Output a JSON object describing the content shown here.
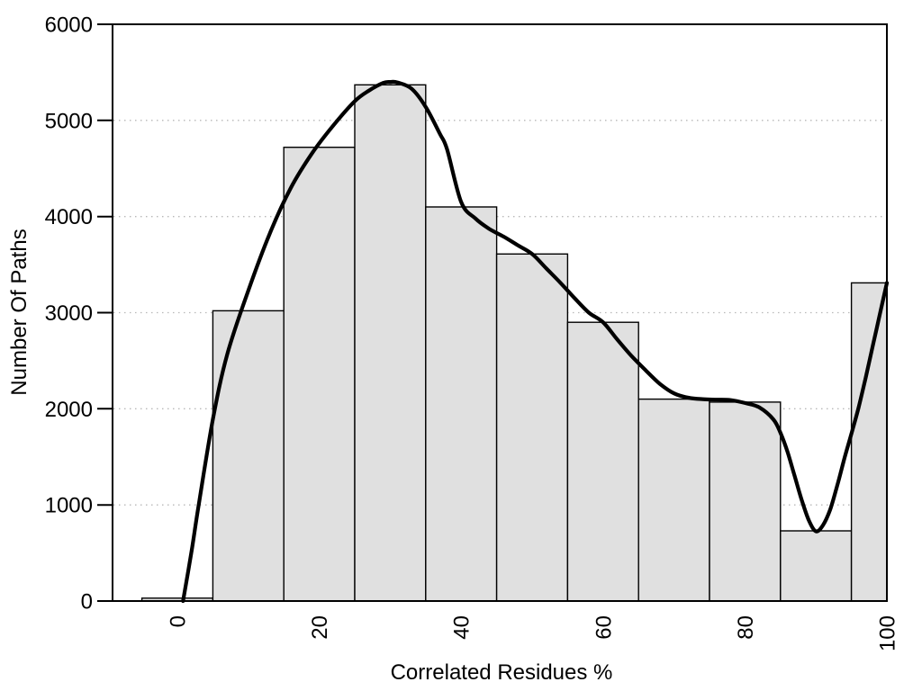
{
  "chart_data": {
    "type": "bar",
    "subtype": "histogram-with-density-curve",
    "title": "",
    "xlabel": "Correlated Residues %",
    "ylabel": "Number Of Paths",
    "xlim": [
      -9.14,
      100
    ],
    "ylim": [
      0,
      6000
    ],
    "x_ticks": [
      0,
      20,
      40,
      60,
      80,
      100
    ],
    "y_ticks": [
      0,
      1000,
      2000,
      3000,
      4000,
      5000,
      6000
    ],
    "gridlines_y": [
      1000,
      2000,
      3000,
      4000,
      5000
    ],
    "grid_on": true,
    "legend": null,
    "bars": [
      {
        "x0": -5,
        "x1": 5,
        "value": 30
      },
      {
        "x0": 5,
        "x1": 15,
        "value": 3020
      },
      {
        "x0": 15,
        "x1": 25,
        "value": 4720
      },
      {
        "x0": 25,
        "x1": 35,
        "value": 5370
      },
      {
        "x0": 35,
        "x1": 45,
        "value": 4100
      },
      {
        "x0": 45,
        "x1": 55,
        "value": 3610
      },
      {
        "x0": 55,
        "x1": 65,
        "value": 2900
      },
      {
        "x0": 65,
        "x1": 75,
        "value": 2100
      },
      {
        "x0": 75,
        "x1": 85,
        "value": 2070
      },
      {
        "x0": 85,
        "x1": 95,
        "value": 730
      },
      {
        "x0": 95,
        "x1": 100,
        "value": 3310
      }
    ],
    "curve": [
      [
        0.8,
        0
      ],
      [
        2,
        520
      ],
      [
        3,
        1000
      ],
      [
        5,
        1890
      ],
      [
        7,
        2560
      ],
      [
        10,
        3230
      ],
      [
        13,
        3820
      ],
      [
        16,
        4300
      ],
      [
        19,
        4660
      ],
      [
        22,
        4950
      ],
      [
        25,
        5200
      ],
      [
        27,
        5310
      ],
      [
        29,
        5390
      ],
      [
        30,
        5400
      ],
      [
        31,
        5395
      ],
      [
        33,
        5330
      ],
      [
        35,
        5140
      ],
      [
        37,
        4860
      ],
      [
        38,
        4700
      ],
      [
        40,
        4150
      ],
      [
        42,
        3980
      ],
      [
        44,
        3870
      ],
      [
        46,
        3790
      ],
      [
        48,
        3700
      ],
      [
        50,
        3610
      ],
      [
        52,
        3460
      ],
      [
        54,
        3310
      ],
      [
        56,
        3150
      ],
      [
        58,
        3000
      ],
      [
        60,
        2900
      ],
      [
        62,
        2720
      ],
      [
        64,
        2550
      ],
      [
        66,
        2400
      ],
      [
        68,
        2260
      ],
      [
        70,
        2160
      ],
      [
        72,
        2115
      ],
      [
        74,
        2100
      ],
      [
        76,
        2095
      ],
      [
        78,
        2090
      ],
      [
        80,
        2060
      ],
      [
        82,
        2015
      ],
      [
        84,
        1890
      ],
      [
        85,
        1750
      ],
      [
        86,
        1550
      ],
      [
        87,
        1300
      ],
      [
        88,
        1050
      ],
      [
        89,
        840
      ],
      [
        90,
        725
      ],
      [
        91,
        790
      ],
      [
        92,
        950
      ],
      [
        93,
        1200
      ],
      [
        94,
        1480
      ],
      [
        95,
        1740
      ],
      [
        96,
        2010
      ],
      [
        97,
        2320
      ],
      [
        98,
        2650
      ],
      [
        99,
        2980
      ],
      [
        100,
        3310
      ]
    ],
    "colors": {
      "bar_fill": "#e0e0e0",
      "bar_stroke": "#000000",
      "curve": "#000000",
      "grid": "#b8b8b8",
      "axis": "#000000",
      "background": "#ffffff",
      "text": "#000000"
    }
  }
}
